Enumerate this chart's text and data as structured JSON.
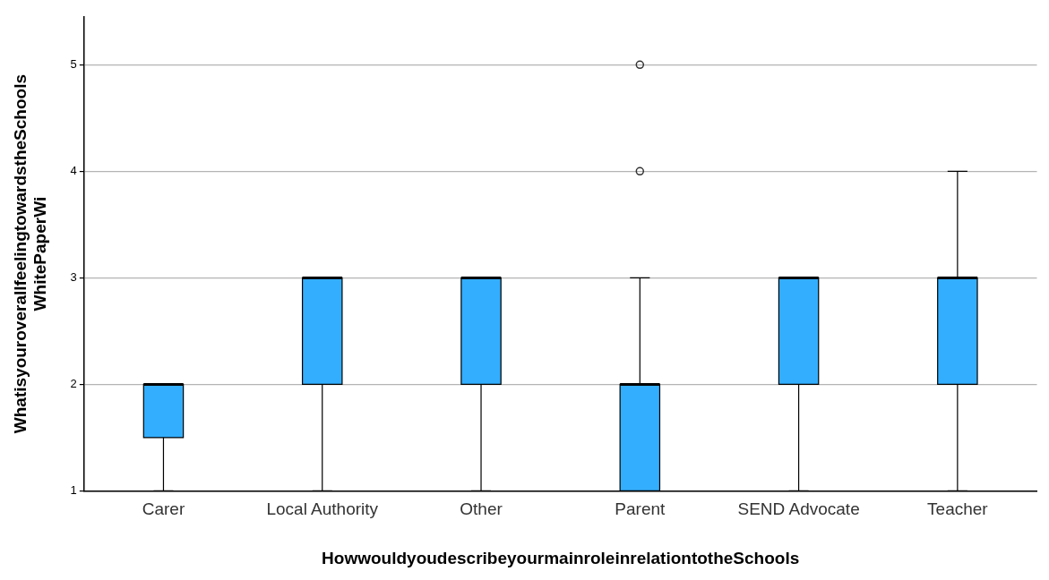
{
  "chart_data": {
    "type": "box",
    "xlabel": "HowwouldyoudescribeyourmainroleinrelationtotheSchools",
    "ylabel": "WhatisyouroverallfeelingtowardstheSchools WhitePaperWi",
    "categories": [
      "Carer",
      "Local Authority",
      "Other",
      "Parent",
      "SEND Advocate",
      "Teacher"
    ],
    "color": "#33aeff",
    "boxes": [
      {
        "low": 1,
        "q1": 1.5,
        "median": 2,
        "q3": 2,
        "high": 2
      },
      {
        "low": 1,
        "q1": 2,
        "median": 3,
        "q3": 3,
        "high": 3
      },
      {
        "low": 1,
        "q1": 2,
        "median": 3,
        "q3": 3,
        "high": 3
      },
      {
        "low": 1,
        "q1": 1,
        "median": 2,
        "q3": 2,
        "high": 3,
        "outliers": [
          4,
          5
        ]
      },
      {
        "low": 1,
        "q1": 2,
        "median": 3,
        "q3": 3,
        "high": 3
      },
      {
        "low": 1,
        "q1": 2,
        "median": 3,
        "q3": 3,
        "high": 4
      }
    ],
    "ylim": [
      1,
      5.45
    ],
    "yticks": [
      1,
      2,
      3,
      4,
      5
    ],
    "grid": "y",
    "legend": false
  }
}
